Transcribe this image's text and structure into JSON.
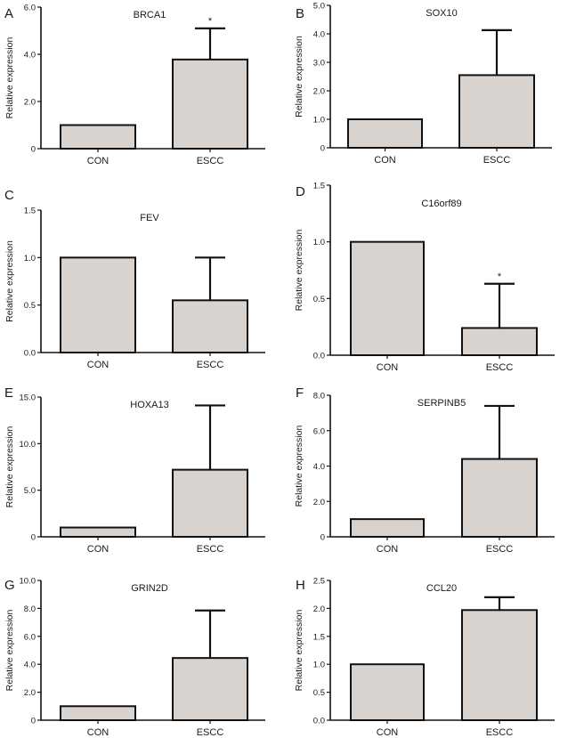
{
  "chart_data": [
    {
      "panel": "A",
      "type": "bar",
      "title": "BRCA1",
      "ylabel": "Relative expression",
      "categories": [
        "CON",
        "ESCC"
      ],
      "values": [
        1.0,
        3.78
      ],
      "errors": [
        0,
        1.32
      ],
      "significance": [
        "",
        "*"
      ],
      "ylim": [
        0,
        6.0
      ],
      "yticks": [
        0,
        2.0,
        4.0,
        6.0
      ],
      "ytick_labels": [
        "0",
        "2.0",
        "4.0",
        "6.0"
      ],
      "grid": false,
      "legend": false
    },
    {
      "panel": "B",
      "type": "bar",
      "title": "SOX10",
      "ylabel": "Relative expression",
      "categories": [
        "CON",
        "ESCC"
      ],
      "values": [
        1.0,
        2.55
      ],
      "errors": [
        0,
        1.58
      ],
      "significance": [
        "",
        ""
      ],
      "ylim": [
        0,
        5.0
      ],
      "yticks": [
        0,
        1.0,
        2.0,
        3.0,
        4.0,
        5.0
      ],
      "ytick_labels": [
        "0",
        "1.0",
        "2.0",
        "3.0",
        "4.0",
        "5.0"
      ],
      "grid": false,
      "legend": false
    },
    {
      "panel": "C",
      "type": "bar",
      "title": "FEV",
      "ylabel": "Relative expression",
      "categories": [
        "CON",
        "ESCC"
      ],
      "values": [
        1.0,
        0.55
      ],
      "errors": [
        0,
        0.45
      ],
      "significance": [
        "",
        ""
      ],
      "ylim": [
        0,
        1.5
      ],
      "yticks": [
        0,
        0.5,
        1.0,
        1.5
      ],
      "ytick_labels": [
        "0.0",
        "0.5",
        "1.0",
        "1.5"
      ],
      "grid": false,
      "legend": false
    },
    {
      "panel": "D",
      "type": "bar",
      "title": "C16orf89",
      "ylabel": "Relative expression",
      "categories": [
        "CON",
        "ESCC"
      ],
      "values": [
        1.0,
        0.24
      ],
      "errors": [
        0,
        0.39
      ],
      "significance": [
        "",
        "*"
      ],
      "ylim": [
        0,
        1.5
      ],
      "yticks": [
        0,
        0.5,
        1.0,
        1.5
      ],
      "ytick_labels": [
        "0.0",
        "0.5",
        "1.0",
        "1.5"
      ],
      "grid": false,
      "legend": false
    },
    {
      "panel": "E",
      "type": "bar",
      "title": "HOXA13",
      "ylabel": "Relative expression",
      "categories": [
        "CON",
        "ESCC"
      ],
      "values": [
        1.0,
        7.2
      ],
      "errors": [
        0,
        6.9
      ],
      "significance": [
        "",
        ""
      ],
      "ylim": [
        0,
        15.0
      ],
      "yticks": [
        0,
        5.0,
        10.0,
        15.0
      ],
      "ytick_labels": [
        "0",
        "5.0",
        "10.0",
        "15.0"
      ],
      "grid": false,
      "legend": false
    },
    {
      "panel": "F",
      "type": "bar",
      "title": "SERPINB5",
      "ylabel": "Relative expression",
      "categories": [
        "CON",
        "ESCC"
      ],
      "values": [
        1.0,
        4.4
      ],
      "errors": [
        0,
        3.0
      ],
      "significance": [
        "",
        ""
      ],
      "ylim": [
        0,
        8.0
      ],
      "yticks": [
        0,
        2.0,
        4.0,
        6.0,
        8.0
      ],
      "ytick_labels": [
        "0",
        "2.0",
        "4.0",
        "6.0",
        "8.0"
      ],
      "grid": false,
      "legend": false
    },
    {
      "panel": "G",
      "type": "bar",
      "title": "GRIN2D",
      "ylabel": "Relative expression",
      "categories": [
        "CON",
        "ESCC"
      ],
      "values": [
        1.0,
        4.45
      ],
      "errors": [
        0,
        3.4
      ],
      "significance": [
        "",
        ""
      ],
      "ylim": [
        0,
        10.0
      ],
      "yticks": [
        0,
        2.0,
        4.0,
        6.0,
        8.0,
        10.0
      ],
      "ytick_labels": [
        "0",
        "2.0",
        "4.0",
        "6.0",
        "8.0",
        "10.0"
      ],
      "grid": false,
      "legend": false
    },
    {
      "panel": "H",
      "type": "bar",
      "title": "CCL20",
      "ylabel": "Relative expression",
      "categories": [
        "CON",
        "ESCC"
      ],
      "values": [
        1.0,
        1.97
      ],
      "errors": [
        0,
        0.23
      ],
      "significance": [
        "",
        ""
      ],
      "ylim": [
        0,
        2.5
      ],
      "yticks": [
        0,
        0.5,
        1.0,
        1.5,
        2.0,
        2.5
      ],
      "ytick_labels": [
        "0.0",
        "0.5",
        "1.0",
        "1.5",
        "2.0",
        "2.5"
      ],
      "grid": false,
      "legend": false
    }
  ],
  "colors": {
    "bar_fill": "#d9d3cf",
    "stroke": "#111111"
  }
}
